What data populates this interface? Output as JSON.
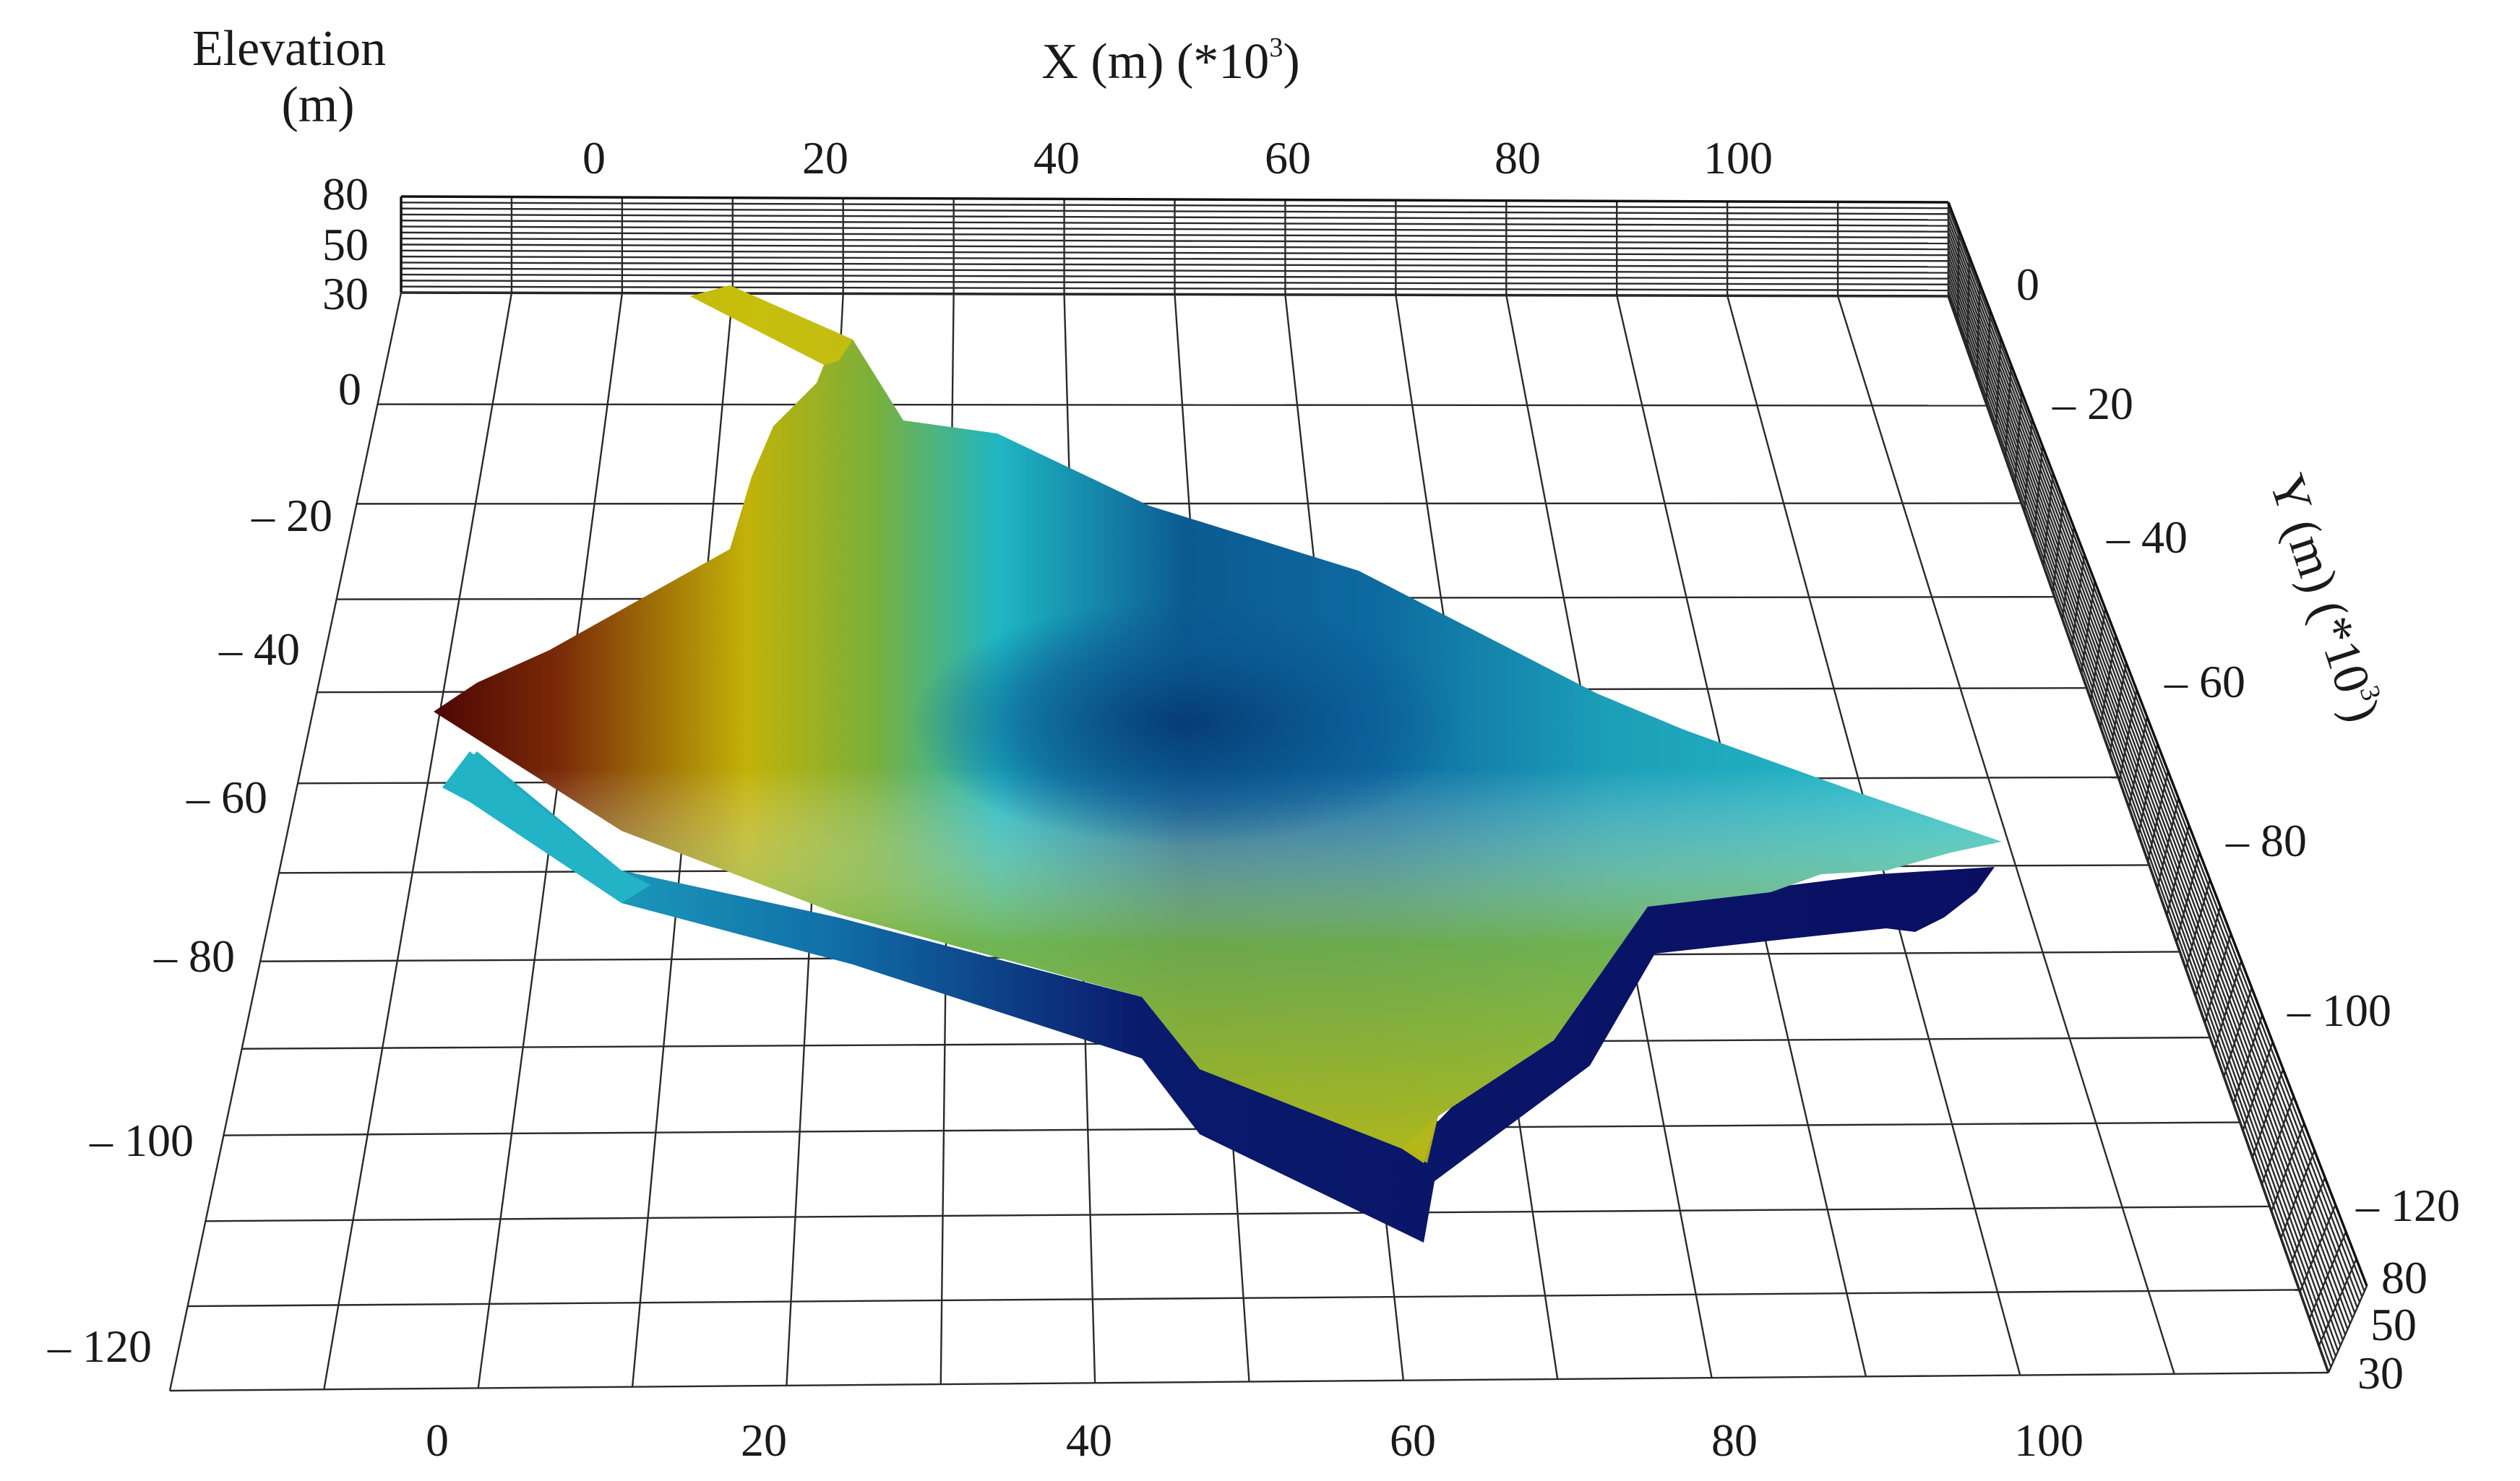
{
  "axes": {
    "elevation": {
      "title_line1": "Elevation",
      "title_line2": "(m)",
      "ticks": [
        "80",
        "50",
        "30"
      ]
    },
    "x": {
      "title": "X (m) (*10",
      "title_sup": "3",
      "title_close": ")",
      "top_ticks": [
        "0",
        "20",
        "40",
        "60",
        "80",
        "100"
      ],
      "bottom_ticks": [
        "0",
        "20",
        "40",
        "60",
        "80",
        "100"
      ]
    },
    "y": {
      "title": "Y (m) (*10",
      "title_sup": "3",
      "title_close": ")",
      "left_ticks": [
        "0",
        "– 20",
        "– 40",
        "– 60",
        "– 80",
        "– 100",
        "– 120"
      ],
      "right_ticks": [
        "0",
        "– 20",
        "– 40",
        "– 60",
        "– 80",
        "– 100",
        "– 120"
      ]
    },
    "corner_elevation_ticks": [
      "80",
      "50",
      "30"
    ]
  },
  "colors": {
    "surface_low": "#0b3d7a",
    "surface_mid": "#17b3c4",
    "surface_green": "#6aa84f",
    "surface_yellow": "#c9c10a",
    "surface_high": "#5a0a05",
    "bottom_layer": "#0a1066",
    "bottom_layer_edge": "#2bb5c8"
  }
}
